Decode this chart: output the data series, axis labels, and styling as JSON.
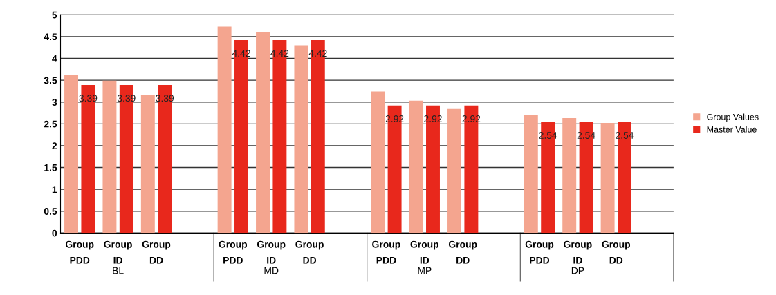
{
  "chart_data": {
    "type": "bar",
    "categories": [
      "Group\nPDD",
      "Group\nID",
      "Group\nDD",
      null,
      "Group\nPDD",
      "Group\nID",
      "Group\nDD",
      null,
      "Group\nPDD",
      "Group\nID",
      "Group\nDD",
      null,
      "Group\nPDD",
      "Group\nID",
      "Group\nDD",
      null
    ],
    "series": [
      {
        "name": "Group Values",
        "color": "#f4a58f",
        "values": [
          3.63,
          3.49,
          3.16,
          null,
          4.73,
          4.6,
          4.3,
          null,
          3.24,
          3.03,
          2.84,
          null,
          2.7,
          2.63,
          2.52,
          null
        ]
      },
      {
        "name": "Master Value",
        "color": "#e8281c",
        "values": [
          3.39,
          3.39,
          3.39,
          null,
          4.42,
          4.42,
          4.42,
          null,
          2.92,
          2.92,
          2.92,
          null,
          2.54,
          2.54,
          2.54,
          null
        ],
        "value_labels": [
          "3.39",
          "3.39",
          "3.39",
          null,
          "4.42",
          "4.42",
          "4.42",
          null,
          "2.92",
          "2.92",
          "2.92",
          null,
          "2.54",
          "2.54",
          "2.54",
          null
        ]
      }
    ],
    "annotations": [
      "BL",
      "MD",
      "MP",
      "DP"
    ],
    "ylim": [
      0,
      5
    ],
    "yticks": [
      0,
      0.5,
      1,
      1.5,
      2,
      2.5,
      3,
      3.5,
      4,
      4.5,
      5
    ],
    "grid": "y",
    "legend": "right"
  }
}
